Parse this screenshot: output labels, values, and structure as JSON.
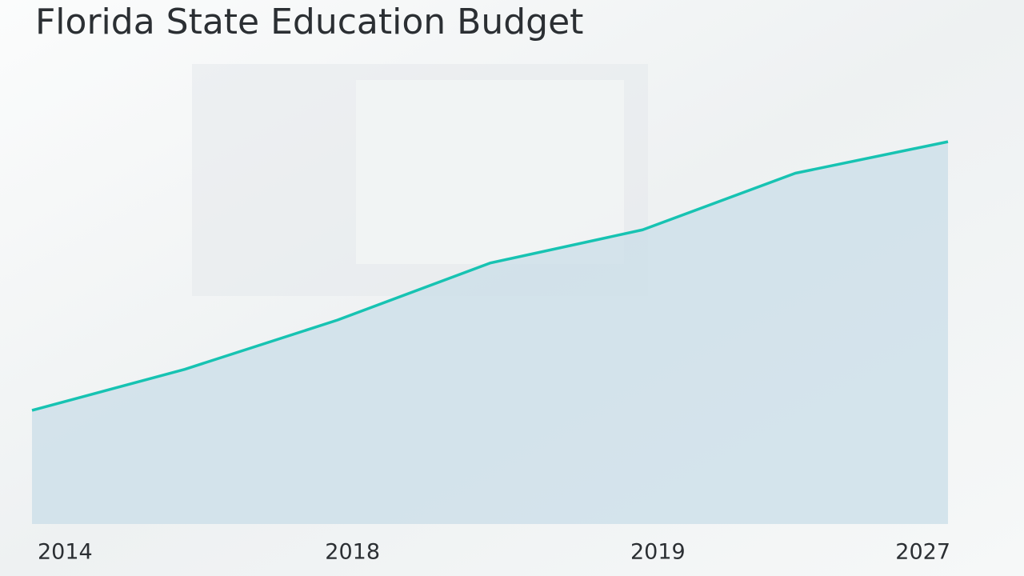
{
  "chart_data": {
    "type": "area",
    "title": "Florida State Education Budget",
    "categories": [
      "2014",
      null,
      "2018",
      null,
      "2019",
      null,
      "2027"
    ],
    "values": [
      26.3,
      35.8,
      47.2,
      60.4,
      68.1,
      81.2,
      88.5
    ],
    "color": "#17c3b2",
    "fill_color": "#c9dde8",
    "ylim": [
      0,
      100
    ]
  }
}
